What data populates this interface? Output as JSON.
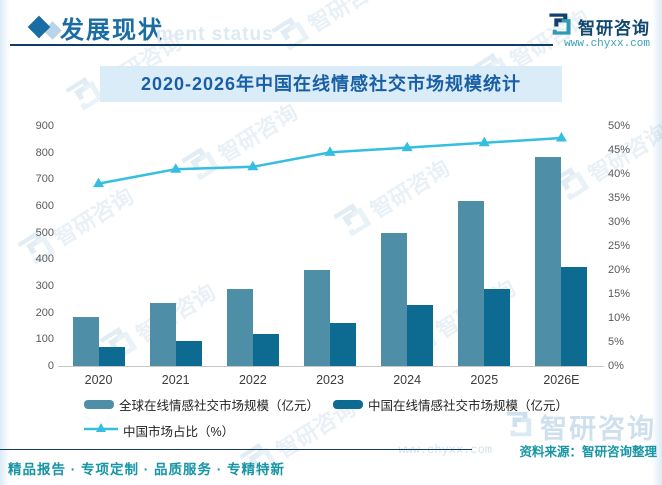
{
  "header": {
    "section_title": "发展现状",
    "ghost_text": "ment status",
    "brand_name": "智研咨询",
    "brand_url": "www.chyxx.com"
  },
  "chart_data": {
    "type": "bar+line",
    "title": "2020-2026年中国在线情感社交市场规模统计",
    "categories": [
      "2020",
      "2021",
      "2022",
      "2023",
      "2024",
      "2025",
      "2026E"
    ],
    "series": [
      {
        "name": "全球在线情感社交市场规模（亿元）",
        "type": "bar",
        "axis": "left",
        "color": "#4e8ea6",
        "values": [
          185,
          235,
          290,
          360,
          500,
          620,
          785
        ]
      },
      {
        "name": "中国在线情感社交市场规模（亿元）",
        "type": "bar",
        "axis": "left",
        "color": "#0d6b92",
        "values": [
          70,
          95,
          120,
          160,
          230,
          290,
          370
        ]
      },
      {
        "name": "中国市场占比（%）",
        "type": "line",
        "axis": "right",
        "color": "#35bedf",
        "values": [
          38,
          41,
          41.5,
          44.5,
          45.5,
          46.5,
          47.5
        ]
      }
    ],
    "left_axis": {
      "min": 0,
      "max": 900,
      "step": 100
    },
    "right_axis": {
      "min": 0,
      "max": 50,
      "step": 5,
      "suffix": "%"
    },
    "grid": "off",
    "legend_position": "bottom"
  },
  "footer": {
    "source_text": "资料来源：智研咨询整理",
    "tagline": "精品报告 · 专项定制 · 品质服务 · 专精特新",
    "watermark_brand": "智研咨询",
    "watermark_url": "www.chyxx.com"
  },
  "colors": {
    "accent_blue": "#1a6da4",
    "dark_navy": "#123c63",
    "band_bg": "#d9ecf7",
    "band_text": "#1a5fa5",
    "teal_text": "#1795a5",
    "global_bar": "#4e8ea6",
    "china_bar": "#0d6b92",
    "line": "#35bedf"
  }
}
